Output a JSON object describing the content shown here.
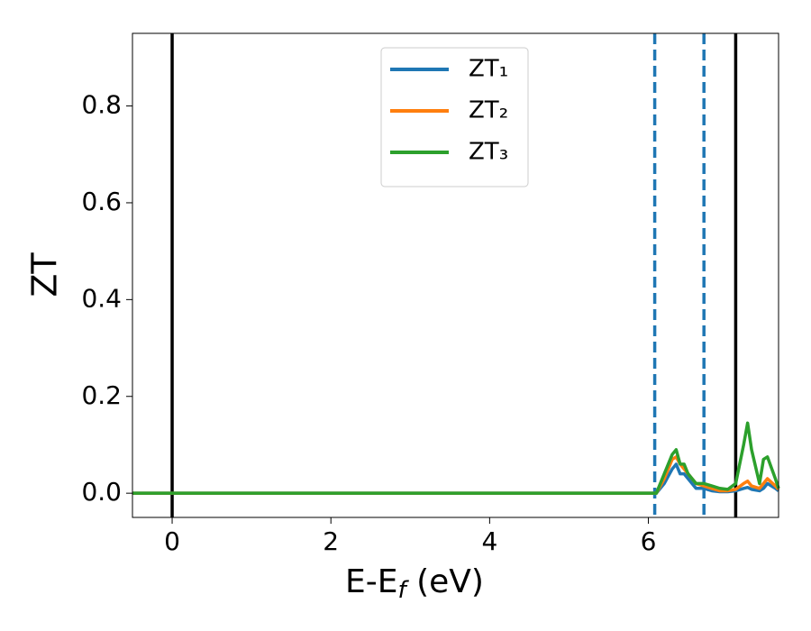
{
  "chart_data": {
    "type": "line",
    "xlabel": "E-Ef (eV)",
    "ylabel": "ZT",
    "x": [
      -0.5,
      6.0,
      6.1,
      6.2,
      6.3,
      6.35,
      6.4,
      6.45,
      6.5,
      6.6,
      6.7,
      6.8,
      6.9,
      7.0,
      7.1,
      7.2,
      7.25,
      7.3,
      7.4,
      7.45,
      7.5,
      7.6,
      7.64
    ],
    "series": [
      {
        "name": "ZT₁",
        "color": "#1f77b4",
        "values": [
          0,
          0,
          0,
          0.02,
          0.05,
          0.06,
          0.04,
          0.04,
          0.03,
          0.01,
          0.01,
          0.005,
          0.003,
          0.003,
          0.005,
          0.01,
          0.012,
          0.008,
          0.005,
          0.01,
          0.02,
          0.01,
          0.005
        ]
      },
      {
        "name": "ZT₂",
        "color": "#ff7f0e",
        "values": [
          0,
          0,
          0,
          0.03,
          0.07,
          0.075,
          0.06,
          0.05,
          0.04,
          0.02,
          0.015,
          0.01,
          0.005,
          0.005,
          0.008,
          0.02,
          0.025,
          0.015,
          0.01,
          0.02,
          0.03,
          0.015,
          0.008
        ]
      },
      {
        "name": "ZT₃",
        "color": "#2ca02c",
        "values": [
          0,
          0,
          0,
          0.04,
          0.08,
          0.09,
          0.06,
          0.06,
          0.04,
          0.02,
          0.02,
          0.015,
          0.01,
          0.008,
          0.02,
          0.1,
          0.145,
          0.09,
          0.02,
          0.07,
          0.075,
          0.03,
          0.01
        ]
      }
    ],
    "xlim": [
      -0.5,
      7.64
    ],
    "ylim": [
      -0.05,
      0.95
    ],
    "xticks": [
      0,
      2,
      4,
      6
    ],
    "yticks": [
      {
        "value": 0,
        "label": "0.0"
      },
      0.2,
      0.4,
      0.6,
      0.8
    ],
    "vlines": [
      {
        "x": 0,
        "color": "#000000",
        "style": "solid"
      },
      {
        "x": 7.1,
        "color": "#000000",
        "style": "solid"
      },
      {
        "x": 6.08,
        "color": "#1f77b4",
        "style": "dashed"
      },
      {
        "x": 6.7,
        "color": "#1f77b4",
        "style": "dashed"
      }
    ],
    "legend": "upper center"
  }
}
